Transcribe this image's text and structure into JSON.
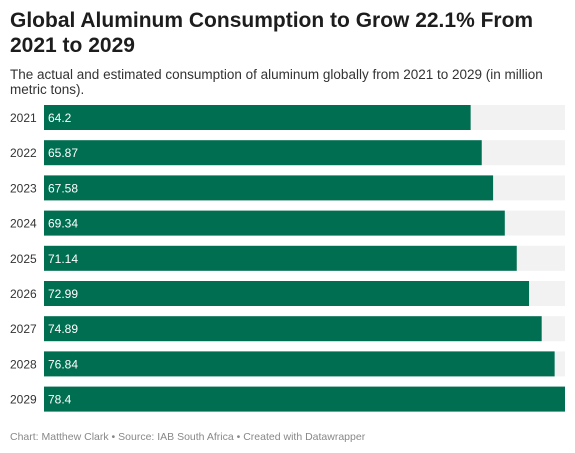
{
  "title": "Global Aluminum Consumption to Grow 22.1% From 2021 to 2029",
  "subtitle": "The actual and estimated consumption of aluminum globally from 2021 to 2029 (in million metric tons).",
  "footer": {
    "chart_credit": "Chart: Matthew Clark",
    "separator_1": " • ",
    "source": "Source: IAB South Africa",
    "separator_2": " • ",
    "created_with": "Created with Datawrapper"
  },
  "colors": {
    "bar": "#006e51",
    "track": "#f2f2f2"
  },
  "chart_data": {
    "type": "bar",
    "orientation": "horizontal",
    "categories": [
      "2021",
      "2022",
      "2023",
      "2024",
      "2025",
      "2026",
      "2027",
      "2028",
      "2029"
    ],
    "values": [
      64.2,
      65.87,
      67.58,
      69.34,
      71.14,
      72.99,
      74.89,
      76.84,
      78.4
    ],
    "value_labels": [
      "64.2",
      "65.87",
      "67.58",
      "69.34",
      "71.14",
      "72.99",
      "74.89",
      "76.84",
      "78.4"
    ],
    "xlim": [
      0,
      78.4
    ],
    "grid": false,
    "legend": "none"
  }
}
